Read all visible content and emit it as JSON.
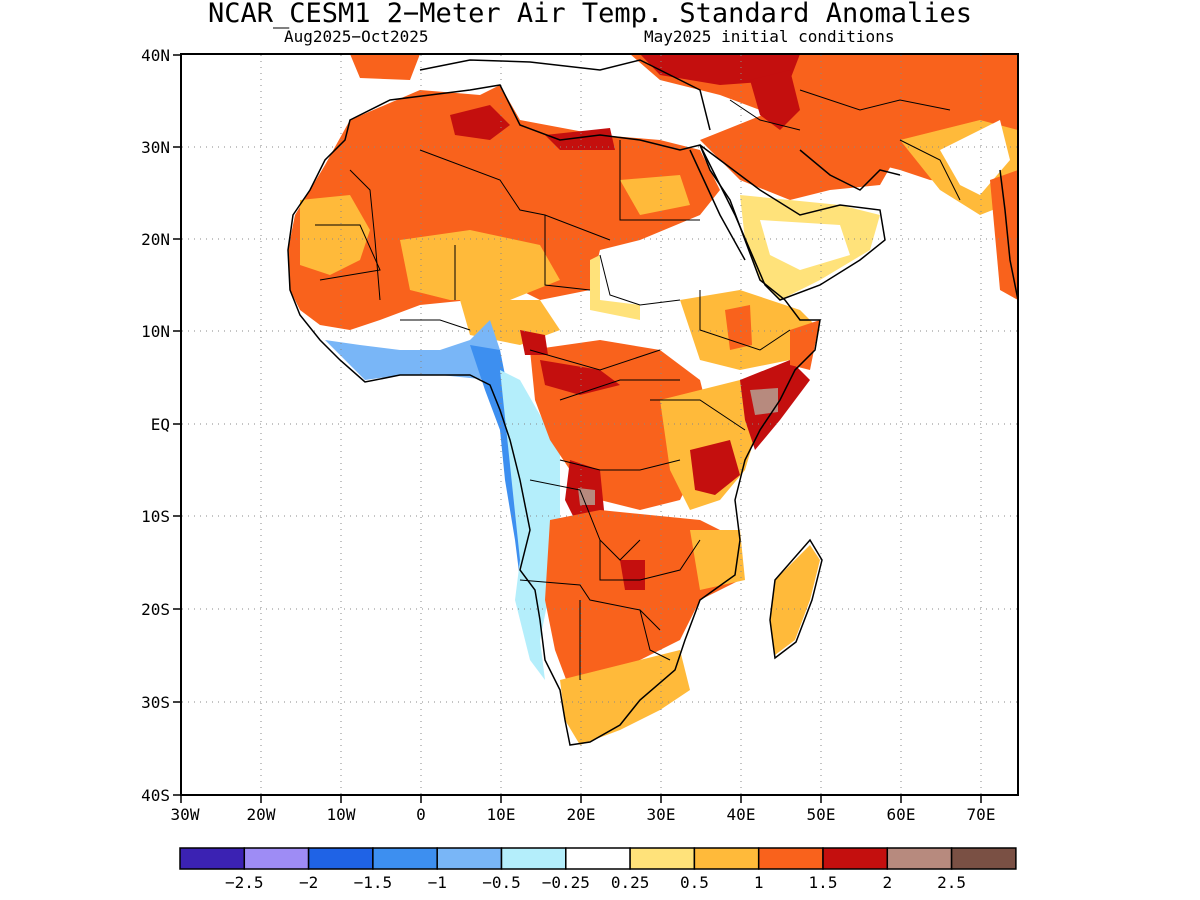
{
  "title": "NCAR_CESM1 2−Meter Air Temp. Standard Anomalies",
  "subtitle_left": "Aug2025−Oct2025",
  "subtitle_right": "May2025 initial conditions",
  "lat_labels": [
    "40N",
    "30N",
    "20N",
    "10N",
    "EQ",
    "10S",
    "20S",
    "30S",
    "40S"
  ],
  "lon_labels": [
    "30W",
    "20W",
    "10W",
    "0",
    "10E",
    "20E",
    "30E",
    "40E",
    "50E",
    "60E",
    "70E"
  ],
  "colorbar": {
    "colors": [
      "#3b22b3",
      "#9e8cf5",
      "#1f63e6",
      "#3d8ff0",
      "#79b6f7",
      "#b4eefb",
      "#ffffff",
      "#ffe27a",
      "#ffba3a",
      "#f9621c",
      "#c40f0e",
      "#b78a7e",
      "#7a5044"
    ],
    "labels": [
      "−2.5",
      "−2",
      "−1.5",
      "−1",
      "−0.5",
      "−0.25",
      "0.25",
      "0.5",
      "1",
      "1.5",
      "2",
      "2.5"
    ]
  }
}
